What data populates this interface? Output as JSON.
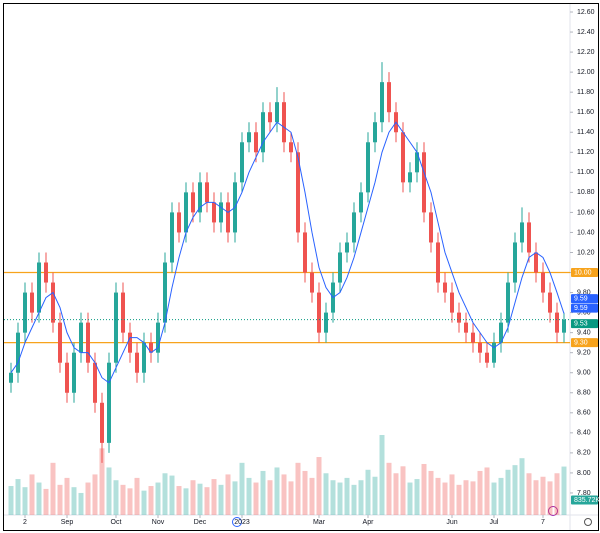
{
  "chart_data": {
    "type": "candlestick",
    "ylim": [
      7.58,
      12.67
    ],
    "yticks": [
      {
        "value": 7.8,
        "label": "7.80"
      },
      {
        "value": 8.0,
        "label": "8.00"
      },
      {
        "value": 8.2,
        "label": "8.20"
      },
      {
        "value": 8.4,
        "label": "8.40"
      },
      {
        "value": 8.6,
        "label": "8.60"
      },
      {
        "value": 8.8,
        "label": "8.80"
      },
      {
        "value": 9.0,
        "label": "9.00"
      },
      {
        "value": 9.2,
        "label": "9.20"
      },
      {
        "value": 9.4,
        "label": "9.40"
      },
      {
        "value": 9.6,
        "label": "9.60"
      },
      {
        "value": 9.8,
        "label": "9.80"
      },
      {
        "value": 10.0,
        "label": "10.00"
      },
      {
        "value": 10.2,
        "label": "10.20"
      },
      {
        "value": 10.4,
        "label": "10.40"
      },
      {
        "value": 10.6,
        "label": "10.60"
      },
      {
        "value": 10.8,
        "label": "10.80"
      },
      {
        "value": 11.0,
        "label": "11.00"
      },
      {
        "value": 11.2,
        "label": "11.20"
      },
      {
        "value": 11.4,
        "label": "11.40"
      },
      {
        "value": 11.6,
        "label": "11.60"
      },
      {
        "value": 11.8,
        "label": "11.80"
      },
      {
        "value": 12.0,
        "label": "12.00"
      },
      {
        "value": 12.2,
        "label": "12.20"
      },
      {
        "value": 12.4,
        "label": "12.40"
      },
      {
        "value": 12.6,
        "label": "12.60"
      }
    ],
    "xticks": [
      {
        "value": 2,
        "label": "2"
      },
      {
        "value": 8,
        "label": "Sep"
      },
      {
        "value": 15,
        "label": "Oct"
      },
      {
        "value": 21,
        "label": "Nov"
      },
      {
        "value": 27,
        "label": "Dec"
      },
      {
        "value": 33,
        "label": "2023"
      },
      {
        "value": 44,
        "label": "Mar"
      },
      {
        "value": 51,
        "label": "Apr"
      },
      {
        "value": 63,
        "label": "Jun"
      },
      {
        "value": 69,
        "label": "Jul"
      },
      {
        "value": 76,
        "label": "7"
      }
    ],
    "up_color": "#26a69a",
    "down_color": "#ef5350",
    "ma_color": "#2962ff",
    "grid": false,
    "candles": [
      [
        8.9,
        9.1,
        8.8,
        9.0
      ],
      [
        9.0,
        9.5,
        8.9,
        9.4
      ],
      [
        9.4,
        9.9,
        9.3,
        9.8
      ],
      [
        9.8,
        9.9,
        9.5,
        9.6
      ],
      [
        9.6,
        10.2,
        9.5,
        10.1
      ],
      [
        10.1,
        10.2,
        9.8,
        9.9
      ],
      [
        9.9,
        10.0,
        9.4,
        9.5
      ],
      [
        9.5,
        9.6,
        9.0,
        9.1
      ],
      [
        9.1,
        9.2,
        8.7,
        8.8
      ],
      [
        8.8,
        9.3,
        8.7,
        9.2
      ],
      [
        9.2,
        9.6,
        9.1,
        9.5
      ],
      [
        9.5,
        9.6,
        9.0,
        9.1
      ],
      [
        9.1,
        9.2,
        8.6,
        8.7
      ],
      [
        8.7,
        8.8,
        8.1,
        8.3
      ],
      [
        8.3,
        9.2,
        8.2,
        9.1
      ],
      [
        9.1,
        9.9,
        9.0,
        9.8
      ],
      [
        9.8,
        9.9,
        9.3,
        9.4
      ],
      [
        9.4,
        9.5,
        9.1,
        9.2
      ],
      [
        9.2,
        9.3,
        8.9,
        9.0
      ],
      [
        9.0,
        9.4,
        8.9,
        9.3
      ],
      [
        9.3,
        9.4,
        9.1,
        9.2
      ],
      [
        9.2,
        9.6,
        9.1,
        9.5
      ],
      [
        9.5,
        10.2,
        9.4,
        10.1
      ],
      [
        10.1,
        10.7,
        10.0,
        10.6
      ],
      [
        10.6,
        10.7,
        10.3,
        10.4
      ],
      [
        10.4,
        10.9,
        10.3,
        10.8
      ],
      [
        10.8,
        10.9,
        10.5,
        10.6
      ],
      [
        10.6,
        11.0,
        10.5,
        10.9
      ],
      [
        10.9,
        11.0,
        10.6,
        10.7
      ],
      [
        10.7,
        10.8,
        10.4,
        10.5
      ],
      [
        10.5,
        10.8,
        10.4,
        10.7
      ],
      [
        10.7,
        10.8,
        10.3,
        10.4
      ],
      [
        10.4,
        11.0,
        10.3,
        10.9
      ],
      [
        10.9,
        11.4,
        10.8,
        11.3
      ],
      [
        11.3,
        11.5,
        11.2,
        11.4
      ],
      [
        11.4,
        11.5,
        11.1,
        11.2
      ],
      [
        11.2,
        11.7,
        11.1,
        11.6
      ],
      [
        11.6,
        11.7,
        11.4,
        11.5
      ],
      [
        11.5,
        11.85,
        11.4,
        11.7
      ],
      [
        11.7,
        11.8,
        11.2,
        11.3
      ],
      [
        11.3,
        11.4,
        11.1,
        11.2
      ],
      [
        11.2,
        11.3,
        10.3,
        10.4
      ],
      [
        10.4,
        10.5,
        9.9,
        10.0
      ],
      [
        10.0,
        10.1,
        9.7,
        9.8
      ],
      [
        9.8,
        9.9,
        9.3,
        9.4
      ],
      [
        9.4,
        9.7,
        9.3,
        9.6
      ],
      [
        9.6,
        10.0,
        9.5,
        9.9
      ],
      [
        9.9,
        10.3,
        9.8,
        10.2
      ],
      [
        10.2,
        10.4,
        10.1,
        10.3
      ],
      [
        10.3,
        10.7,
        10.2,
        10.6
      ],
      [
        10.6,
        10.9,
        10.5,
        10.8
      ],
      [
        10.8,
        11.4,
        10.7,
        11.3
      ],
      [
        11.3,
        11.6,
        11.2,
        11.5
      ],
      [
        11.5,
        12.1,
        11.4,
        11.9
      ],
      [
        11.9,
        12.0,
        11.5,
        11.6
      ],
      [
        11.6,
        11.7,
        11.3,
        11.4
      ],
      [
        11.4,
        11.5,
        10.8,
        10.9
      ],
      [
        10.9,
        11.1,
        10.8,
        11.0
      ],
      [
        11.0,
        11.3,
        10.9,
        11.2
      ],
      [
        11.2,
        11.3,
        10.5,
        10.6
      ],
      [
        10.6,
        10.7,
        10.2,
        10.3
      ],
      [
        10.3,
        10.4,
        9.8,
        9.9
      ],
      [
        9.9,
        10.0,
        9.7,
        9.8
      ],
      [
        9.8,
        9.9,
        9.5,
        9.6
      ],
      [
        9.6,
        9.7,
        9.4,
        9.5
      ],
      [
        9.5,
        9.6,
        9.3,
        9.4
      ],
      [
        9.4,
        9.5,
        9.2,
        9.3
      ],
      [
        9.3,
        9.4,
        9.1,
        9.2
      ],
      [
        9.2,
        9.3,
        9.05,
        9.1
      ],
      [
        9.1,
        9.4,
        9.05,
        9.3
      ],
      [
        9.3,
        9.6,
        9.2,
        9.5
      ],
      [
        9.5,
        10.0,
        9.4,
        9.9
      ],
      [
        9.9,
        10.4,
        9.8,
        10.3
      ],
      [
        10.3,
        10.65,
        10.2,
        10.5
      ],
      [
        10.5,
        10.6,
        10.1,
        10.2
      ],
      [
        10.2,
        10.3,
        9.9,
        10.0
      ],
      [
        10.0,
        10.1,
        9.7,
        9.8
      ],
      [
        9.8,
        9.9,
        9.5,
        9.6
      ],
      [
        9.6,
        9.7,
        9.3,
        9.4
      ],
      [
        9.4,
        9.6,
        9.3,
        9.53
      ]
    ],
    "ma": [
      9.0,
      9.1,
      9.3,
      9.45,
      9.6,
      9.75,
      9.8,
      9.65,
      9.4,
      9.25,
      9.2,
      9.2,
      9.1,
      8.95,
      8.9,
      9.05,
      9.2,
      9.35,
      9.35,
      9.3,
      9.2,
      9.25,
      9.5,
      9.85,
      10.15,
      10.4,
      10.55,
      10.65,
      10.7,
      10.7,
      10.65,
      10.6,
      10.65,
      10.8,
      11.0,
      11.15,
      11.3,
      11.4,
      11.5,
      11.45,
      11.4,
      11.15,
      10.8,
      10.4,
      10.05,
      9.85,
      9.75,
      9.8,
      9.95,
      10.15,
      10.4,
      10.65,
      10.9,
      11.2,
      11.4,
      11.5,
      11.4,
      11.3,
      11.2,
      11.0,
      10.8,
      10.5,
      10.2,
      10.0,
      9.8,
      9.65,
      9.5,
      9.4,
      9.3,
      9.25,
      9.3,
      9.45,
      9.7,
      9.95,
      10.15,
      10.2,
      10.15,
      10.0,
      9.8,
      9.59
    ],
    "volume": [
      500000,
      620000,
      480000,
      700000,
      560000,
      450000,
      900000,
      520000,
      640000,
      480000,
      380000,
      560000,
      700000,
      1150000,
      820000,
      600000,
      520000,
      460000,
      640000,
      420000,
      500000,
      560000,
      720000,
      680000,
      500000,
      460000,
      600000,
      540000,
      480000,
      620000,
      520000,
      700000,
      580000,
      900000,
      640000,
      560000,
      760000,
      600000,
      820000,
      700000,
      580000,
      900000,
      760000,
      640000,
      1000000,
      720000,
      600000,
      560000,
      640000,
      520000,
      600000,
      780000,
      660000,
      1380000,
      900000,
      720000,
      840000,
      560000,
      620000,
      880000,
      760000,
      640000,
      560000,
      700000,
      520000,
      600000,
      580000,
      760000,
      820000,
      560000,
      640000,
      780000,
      860000,
      980000,
      720000,
      600000,
      660000,
      580000,
      720000,
      835720
    ],
    "volume_tag": {
      "value": 835720,
      "label": "835.72K",
      "color": "#26a69a"
    },
    "hlines": [
      {
        "value": 10.0,
        "label": "10.00",
        "color": "#f7a31c"
      },
      {
        "value": 9.3,
        "label": "9.30",
        "color": "#f7a31c"
      }
    ],
    "price_tags": [
      {
        "value": 9.59,
        "label": "9.59",
        "color": "#2962ff"
      },
      {
        "value": 9.59,
        "label": "9.59",
        "color": "#2962ff"
      },
      {
        "value": 9.53,
        "label": "9.53",
        "color": "#089981"
      }
    ]
  }
}
